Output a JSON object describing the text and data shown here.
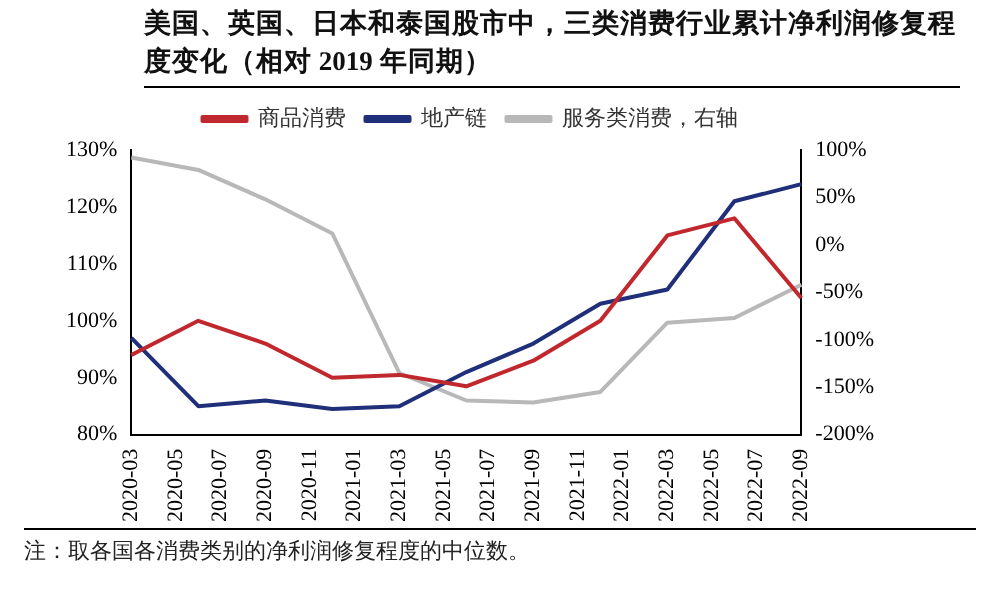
{
  "chart_data": {
    "type": "line",
    "title": "美国、英国、日本和泰国股市中，三类消费行业累计净利润修复程度变化（相对 2019 年同期）",
    "annotations": [
      "注：取各国各消费类别的净利润修复程度的中位数。"
    ],
    "categories": [
      "2020-03",
      null,
      "2020-05",
      null,
      "2020-07",
      null,
      "2020-09",
      null,
      "2020-11",
      null,
      "2021-01",
      null,
      "2021-03",
      null,
      "2021-05",
      null,
      "2021-07",
      null,
      "2021-09",
      null,
      "2021-11",
      null,
      "2022-01",
      null,
      "2022-03",
      null,
      "2022-05",
      null,
      "2022-07",
      null,
      "2022-09"
    ],
    "series": [
      {
        "name": "商品消费",
        "color": "#c0282d",
        "values": [
          94,
          null,
          null,
          100,
          null,
          null,
          96,
          null,
          null,
          90,
          null,
          null,
          90.5,
          null,
          null,
          88.5,
          null,
          null,
          93,
          null,
          null,
          100,
          null,
          null,
          115,
          null,
          null,
          118,
          null,
          null,
          104
        ]
      },
      {
        "name": "地产链",
        "color": "#1f2f7a",
        "values": [
          97,
          null,
          null,
          85,
          null,
          null,
          86,
          null,
          null,
          84.5,
          null,
          null,
          85,
          null,
          null,
          91,
          null,
          null,
          96,
          null,
          null,
          103,
          null,
          null,
          105.5,
          null,
          null,
          121,
          null,
          null,
          124
        ]
      },
      {
        "name": "服务类消费，右轴",
        "color": "#b8b8b8",
        "axis": "y2",
        "values": [
          92,
          null,
          null,
          79,
          null,
          null,
          48,
          null,
          null,
          12,
          null,
          null,
          -135,
          null,
          null,
          -164,
          null,
          null,
          -166,
          null,
          null,
          -155,
          null,
          null,
          -82,
          null,
          null,
          -77,
          null,
          null,
          -42
        ]
      }
    ],
    "ylim": [
      80,
      130
    ],
    "yticks": [
      {
        "value": 80,
        "label": "80%"
      },
      {
        "value": 90,
        "label": "90%"
      },
      {
        "value": 100,
        "label": "100%"
      },
      {
        "value": 110,
        "label": "110%"
      },
      {
        "value": 120,
        "label": "120%"
      },
      {
        "value": 130,
        "label": "130%"
      }
    ],
    "y2lim": [
      -200,
      100
    ],
    "y2ticks": [
      {
        "value": -200,
        "label": "-200%"
      },
      {
        "value": -150,
        "label": "-150%"
      },
      {
        "value": -100,
        "label": "-100%"
      },
      {
        "value": -50,
        "label": "-50%"
      },
      {
        "value": 0,
        "label": "0%"
      },
      {
        "value": 50,
        "label": "50%"
      },
      {
        "value": 100,
        "label": "100%"
      }
    ],
    "grid": false,
    "legend": "top",
    "marker": "none",
    "line_style": "solid"
  }
}
